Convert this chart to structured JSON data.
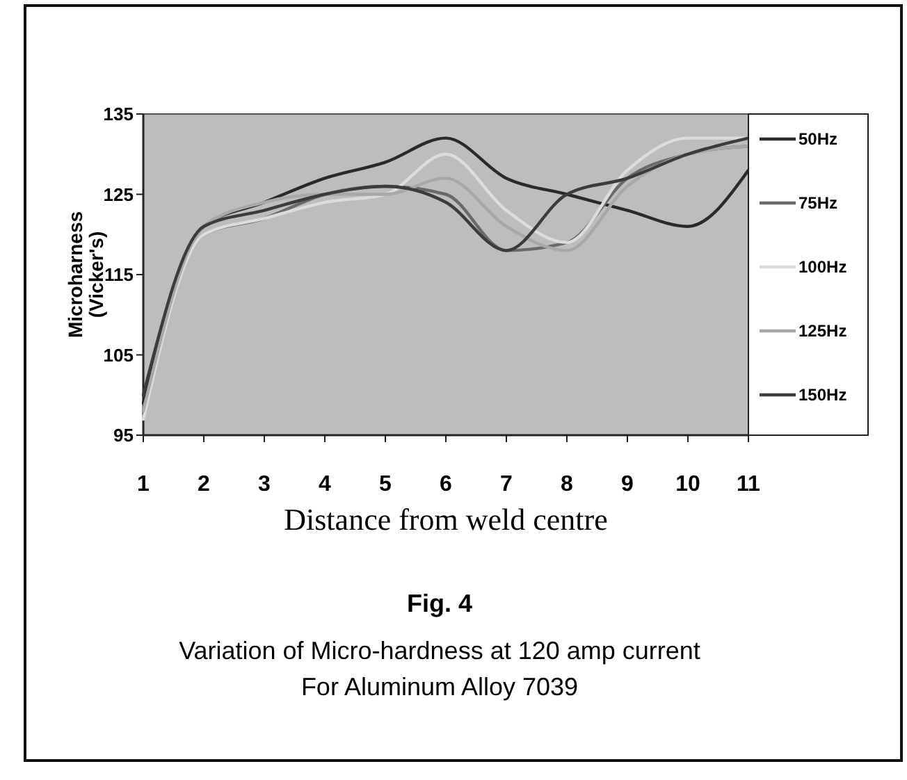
{
  "chart_data": {
    "type": "line",
    "xlabel": "Distance from weld centre",
    "ylabel": "Microharness (Vicker's)",
    "x": [
      1,
      2,
      3,
      4,
      5,
      6,
      7,
      8,
      9,
      10,
      11
    ],
    "series": [
      {
        "name": "50Hz",
        "color": "#2a2a2a",
        "values": [
          99,
          121,
          124,
          127,
          129,
          132,
          127,
          125,
          123,
          121,
          128
        ]
      },
      {
        "name": "75Hz",
        "color": "#6a6a6a",
        "values": [
          98,
          120,
          122,
          125,
          126,
          125,
          118,
          119,
          127,
          130,
          131
        ]
      },
      {
        "name": "100Hz",
        "color": "#dcdcdc",
        "values": [
          97,
          120,
          122,
          124,
          125,
          130,
          123,
          119,
          128,
          132,
          132
        ]
      },
      {
        "name": "125Hz",
        "color": "#a8a8a8",
        "values": [
          98,
          121,
          124,
          125,
          125,
          127,
          121,
          118,
          126,
          130,
          131
        ]
      },
      {
        "name": "150Hz",
        "color": "#3c3c3c",
        "values": [
          100,
          121,
          123,
          125,
          126,
          124,
          118,
          125,
          127,
          130,
          132
        ]
      }
    ],
    "xlim": [
      1,
      11
    ],
    "xticks": [
      1,
      2,
      3,
      4,
      5,
      6,
      7,
      8,
      9,
      10,
      11
    ],
    "ylim": [
      95,
      135
    ],
    "yticks": [
      95,
      105,
      115,
      125,
      135
    ],
    "grid": false,
    "legend": "right",
    "marker": "none",
    "line_style": "solid",
    "annotations": [
      "Fig. 4",
      "Variation of Micro-hardness at 120 amp current",
      "For Aluminum Alloy 7039"
    ]
  }
}
